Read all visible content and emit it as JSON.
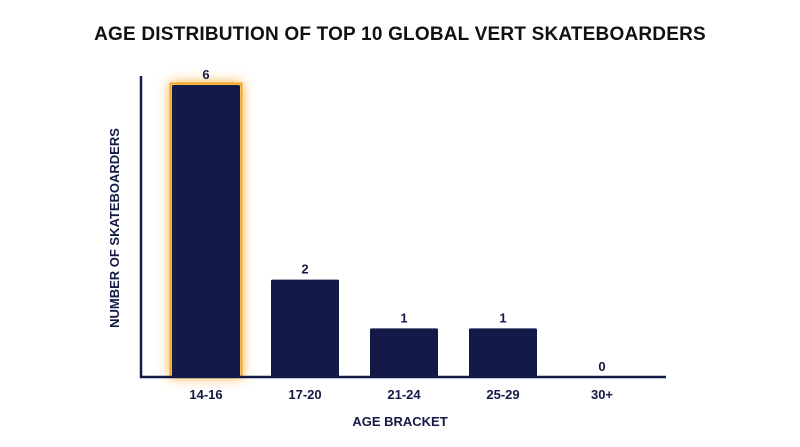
{
  "chart_data": {
    "type": "bar",
    "title": "AGE DISTRIBUTION OF TOP 10 GLOBAL VERT SKATEBOARDERS",
    "xlabel": "AGE BRACKET",
    "ylabel": "NUMBER OF SKATEBOARDERS",
    "categories": [
      "14-16",
      "17-20",
      "21-24",
      "25-29",
      "30+"
    ],
    "values": [
      6,
      2,
      1,
      1,
      0
    ],
    "data_labels": [
      "6",
      "2",
      "1",
      "1",
      "0"
    ],
    "ylim": [
      0,
      6
    ],
    "highlighted_category": "14-16",
    "grid": false,
    "legend": "none",
    "colors": {
      "bar": "#141a47",
      "highlight_glow": "#f5a623",
      "axis": "#141a47",
      "text": "#141a47"
    }
  }
}
